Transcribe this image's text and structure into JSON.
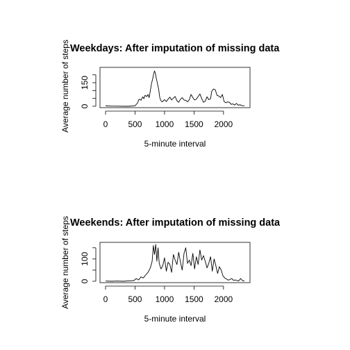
{
  "chart_data": [
    {
      "type": "line",
      "title": "Weekdays: After imputation of missing data",
      "xlabel": "5-minute interval",
      "ylabel": "Average number of steps",
      "xlim": [
        0,
        2355
      ],
      "ylim": [
        0,
        230
      ],
      "xticks": [
        0,
        500,
        1000,
        1500,
        2000
      ],
      "yticks": [
        0,
        50,
        100,
        150,
        200
      ],
      "ytick_labels": [
        "0",
        "",
        "",
        "150",
        ""
      ],
      "x": [
        0,
        100,
        200,
        300,
        400,
        500,
        545,
        560,
        580,
        600,
        630,
        650,
        670,
        700,
        720,
        740,
        760,
        780,
        800,
        815,
        830,
        845,
        860,
        880,
        900,
        920,
        940,
        960,
        980,
        1000,
        1030,
        1060,
        1090,
        1120,
        1150,
        1180,
        1210,
        1240,
        1270,
        1300,
        1330,
        1360,
        1390,
        1420,
        1450,
        1480,
        1510,
        1540,
        1570,
        1600,
        1630,
        1660,
        1690,
        1720,
        1750,
        1780,
        1800,
        1830,
        1860,
        1890,
        1920,
        1950,
        1980,
        2010,
        2040,
        2070,
        2100,
        2130,
        2160,
        2190,
        2220,
        2250,
        2280,
        2310,
        2355
      ],
      "y": [
        2,
        1,
        1,
        0,
        0,
        3,
        22,
        40,
        45,
        38,
        60,
        48,
        70,
        62,
        75,
        55,
        100,
        145,
        175,
        205,
        225,
        210,
        180,
        145,
        110,
        55,
        35,
        28,
        35,
        42,
        30,
        45,
        58,
        40,
        52,
        62,
        35,
        25,
        45,
        55,
        40,
        38,
        28,
        42,
        75,
        55,
        40,
        45,
        62,
        78,
        50,
        25,
        32,
        60,
        42,
        48,
        95,
        110,
        105,
        70,
        65,
        55,
        75,
        30,
        22,
        28,
        25,
        12,
        15,
        8,
        18,
        6,
        10,
        4,
        3
      ]
    },
    {
      "type": "line",
      "title": "Weekends: After imputation of missing data",
      "xlabel": "5-minute interval",
      "ylabel": "Average number of steps",
      "xlim": [
        0,
        2355
      ],
      "ylim": [
        0,
        165
      ],
      "xticks": [
        0,
        500,
        1000,
        1500,
        2000
      ],
      "yticks": [
        0,
        50,
        100,
        150
      ],
      "ytick_labels": [
        "0",
        "",
        "100",
        ""
      ],
      "x": [
        0,
        100,
        200,
        300,
        400,
        480,
        520,
        560,
        600,
        640,
        680,
        720,
        760,
        790,
        810,
        830,
        850,
        870,
        890,
        910,
        940,
        970,
        1000,
        1030,
        1060,
        1090,
        1120,
        1150,
        1180,
        1210,
        1240,
        1270,
        1300,
        1330,
        1360,
        1390,
        1420,
        1450,
        1480,
        1510,
        1540,
        1570,
        1600,
        1630,
        1660,
        1690,
        1720,
        1750,
        1780,
        1810,
        1840,
        1870,
        1900,
        1930,
        1960,
        1990,
        2020,
        2050,
        2080,
        2110,
        2140,
        2170,
        2200,
        2230,
        2260,
        2290,
        2320,
        2355
      ],
      "y": [
        1,
        0,
        1,
        0,
        2,
        3,
        12,
        6,
        20,
        15,
        28,
        40,
        60,
        90,
        160,
        120,
        165,
        90,
        150,
        80,
        55,
        70,
        105,
        45,
        85,
        75,
        40,
        120,
        95,
        75,
        130,
        85,
        50,
        125,
        150,
        80,
        95,
        70,
        125,
        55,
        110,
        75,
        140,
        95,
        115,
        90,
        60,
        80,
        110,
        45,
        100,
        70,
        35,
        65,
        50,
        25,
        15,
        10,
        5,
        8,
        12,
        4,
        6,
        3,
        2,
        12,
        3,
        1
      ]
    }
  ]
}
